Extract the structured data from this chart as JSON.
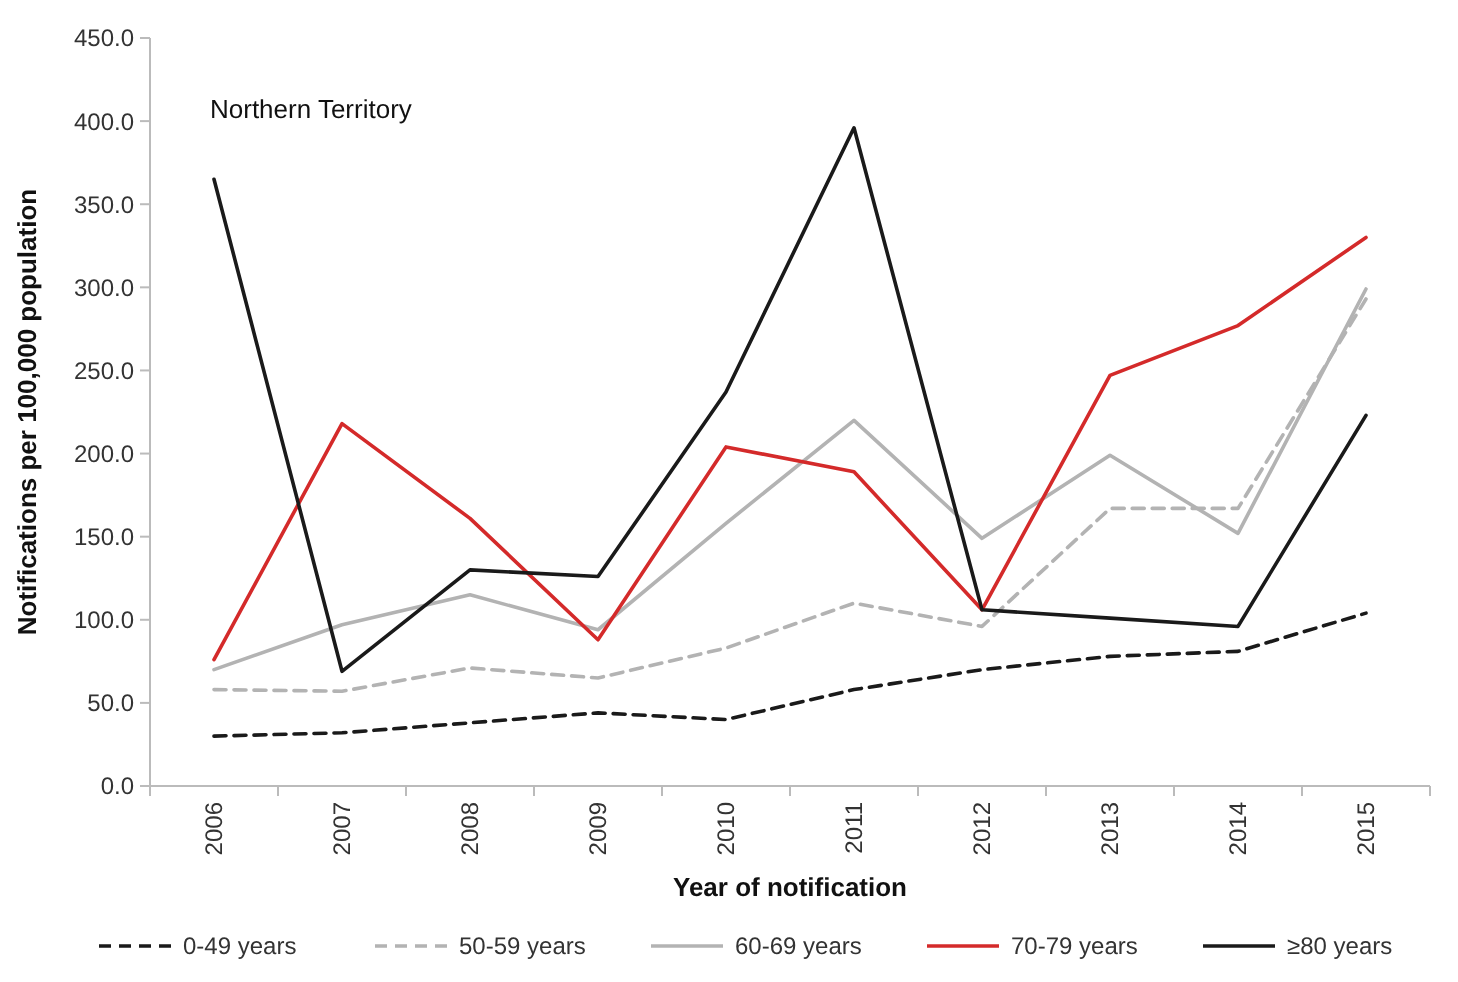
{
  "chart_data": {
    "type": "line",
    "xlabel": "Year of notification",
    "ylabel": "Notifications per 100,000 population",
    "annotations": [
      "Northern Territory"
    ],
    "categories": [
      "2006",
      "2007",
      "2008",
      "2009",
      "2010",
      "2011",
      "2012",
      "2013",
      "2014",
      "2015"
    ],
    "ylim": [
      0,
      450
    ],
    "yticks": [
      {
        "value": 0,
        "label": "0.0"
      },
      {
        "value": 50,
        "label": "50.0"
      },
      {
        "value": 100,
        "label": "100.0"
      },
      {
        "value": 150,
        "label": "150.0"
      },
      {
        "value": 200,
        "label": "200.0"
      },
      {
        "value": 250,
        "label": "250.0"
      },
      {
        "value": 300,
        "label": "300.0"
      },
      {
        "value": 350,
        "label": "350.0"
      },
      {
        "value": 400,
        "label": "400.0"
      },
      {
        "value": 450,
        "label": "450.0"
      }
    ],
    "grid": false,
    "legend": "bottom",
    "marker": "none",
    "series": [
      {
        "name": "0-49 years",
        "color": "#1a1a1a",
        "line_style": "dashed",
        "values": [
          30,
          32,
          38,
          44,
          40,
          58,
          70,
          78,
          81,
          104
        ]
      },
      {
        "name": "50-59 years",
        "color": "#b3b3b3",
        "line_style": "dashed",
        "values": [
          58,
          57,
          71,
          65,
          83,
          110,
          96,
          167,
          167,
          293
        ]
      },
      {
        "name": "60-69 years",
        "color": "#b3b3b3",
        "line_style": "solid",
        "values": [
          70,
          97,
          115,
          94,
          158,
          220,
          149,
          199,
          152,
          299
        ]
      },
      {
        "name": "70-79 years",
        "color": "#d42a2a",
        "line_style": "solid",
        "values": [
          76,
          218,
          161,
          88,
          204,
          189,
          106,
          247,
          277,
          330
        ]
      },
      {
        "name": "≥80 years",
        "color": "#1a1a1a",
        "line_style": "solid",
        "values": [
          365,
          69,
          130,
          126,
          237,
          396,
          106,
          101,
          96,
          223
        ]
      }
    ]
  }
}
